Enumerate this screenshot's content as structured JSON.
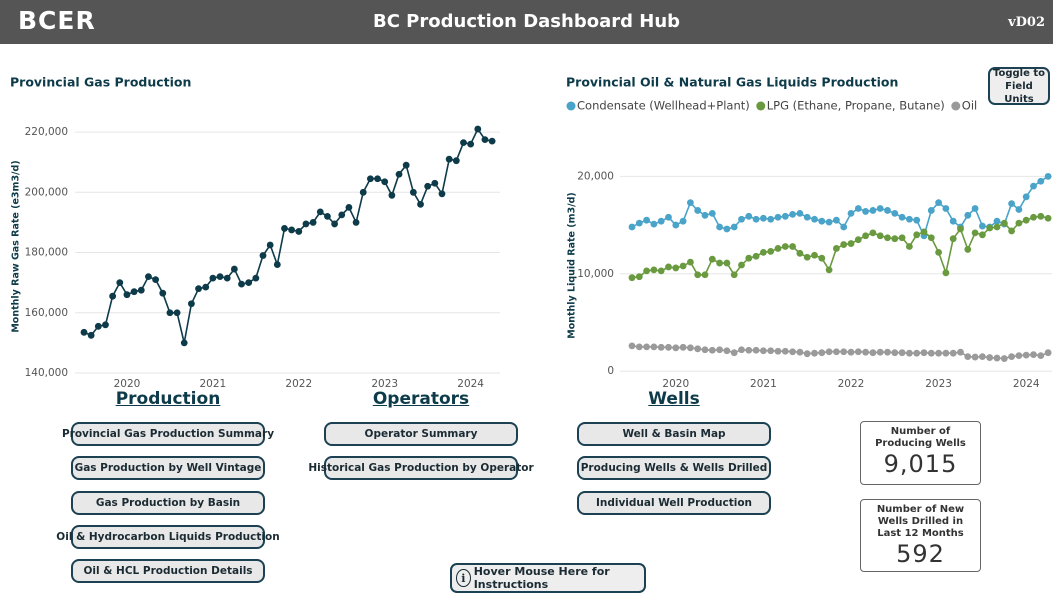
{
  "header": {
    "logo": "BCER",
    "title": "BC Production Dashboard Hub",
    "version": "vD02"
  },
  "chart_data": [
    {
      "type": "line",
      "title": "Provincial Gas Production",
      "y_label": "Monthly Raw Gas Rate (e3m3/d)",
      "categories": [
        null,
        null,
        null,
        null,
        null,
        null,
        "2020",
        null,
        null,
        null,
        null,
        null,
        null,
        null,
        null,
        null,
        null,
        null,
        "2021",
        null,
        null,
        null,
        null,
        null,
        null,
        null,
        null,
        null,
        null,
        null,
        "2022",
        null,
        null,
        null,
        null,
        null,
        null,
        null,
        null,
        null,
        null,
        null,
        "2023",
        null,
        null,
        null,
        null,
        null,
        null,
        null,
        null,
        null,
        null,
        null,
        "2024",
        null,
        null,
        null
      ],
      "color": "#0e3b4a",
      "values": [
        153500,
        152500,
        155500,
        156000,
        165500,
        170000,
        166000,
        167000,
        167500,
        172000,
        171000,
        166500,
        160000,
        160000,
        150000,
        163000,
        168000,
        168500,
        171500,
        172000,
        171500,
        174500,
        169500,
        170000,
        171500,
        179000,
        182500,
        176000,
        188000,
        187500,
        187000,
        189500,
        190000,
        193500,
        192000,
        189500,
        192500,
        195000,
        190000,
        200000,
        204500,
        204500,
        203500,
        199000,
        206000,
        209000,
        200000,
        196000,
        202000,
        203000,
        199500,
        211000,
        210500,
        216500,
        216000,
        221000,
        217500,
        217000
      ],
      "ylim": [
        138000,
        226000
      ],
      "yticks": [
        {
          "value": 140000,
          "label": "140,000"
        },
        {
          "value": 160000,
          "label": "160,000"
        },
        {
          "value": 180000,
          "label": "180,000"
        },
        {
          "value": 200000,
          "label": "200,000"
        },
        {
          "value": 220000,
          "label": "220,000"
        }
      ],
      "grid": true
    },
    {
      "type": "line",
      "title": "Provincial Oil & Natural Gas Liquids Production",
      "y_label": "Monthly Liquid Rate (m3/d)",
      "categories": [
        null,
        null,
        null,
        null,
        null,
        null,
        "2020",
        null,
        null,
        null,
        null,
        null,
        null,
        null,
        null,
        null,
        null,
        null,
        "2021",
        null,
        null,
        null,
        null,
        null,
        null,
        null,
        null,
        null,
        null,
        null,
        "2022",
        null,
        null,
        null,
        null,
        null,
        null,
        null,
        null,
        null,
        null,
        null,
        "2023",
        null,
        null,
        null,
        null,
        null,
        null,
        null,
        null,
        null,
        null,
        null,
        "2024",
        null,
        null,
        null
      ],
      "legend": "top-left",
      "series": [
        {
          "name": "Condensate (Wellhead+Plant)",
          "color": "#4aa3c8",
          "values": [
            14800,
            15200,
            15500,
            15100,
            15400,
            15800,
            15000,
            15400,
            17300,
            16500,
            16000,
            16200,
            14800,
            14600,
            14800,
            15600,
            15900,
            15600,
            15700,
            15600,
            15800,
            15900,
            16100,
            16200,
            15800,
            15600,
            15400,
            15300,
            15500,
            14800,
            16200,
            16700,
            16400,
            16500,
            16700,
            16500,
            16200,
            15800,
            15600,
            15500,
            13900,
            16500,
            17300,
            16700,
            15400,
            14800,
            16000,
            16700,
            14900,
            14800,
            15400,
            15100,
            17200,
            16600,
            17900,
            19000,
            19500,
            20000
          ]
        },
        {
          "name": "LPG (Ethane, Propane, Butane)",
          "color": "#6a9a3f",
          "values": [
            9600,
            9700,
            10300,
            10400,
            10300,
            10700,
            10600,
            10800,
            11200,
            9900,
            9900,
            11500,
            11100,
            11100,
            9900,
            10900,
            11600,
            11800,
            12200,
            12300,
            12600,
            12800,
            12800,
            12100,
            11700,
            11900,
            11600,
            10400,
            12600,
            13000,
            13100,
            13500,
            13900,
            14200,
            13900,
            13700,
            13600,
            13700,
            12800,
            14000,
            14300,
            13700,
            12200,
            10100,
            13600,
            14600,
            12500,
            14200,
            14000,
            14700,
            14800,
            15200,
            14400,
            15200,
            15500,
            15800,
            15900,
            15700
          ]
        },
        {
          "name": "Oil",
          "color": "#9a9a9a",
          "values": [
            2600,
            2500,
            2500,
            2500,
            2450,
            2450,
            2400,
            2450,
            2400,
            2300,
            2200,
            2150,
            2200,
            2100,
            1900,
            2200,
            2150,
            2150,
            2100,
            2100,
            2050,
            2050,
            2000,
            1950,
            1800,
            1850,
            1900,
            2000,
            2000,
            2000,
            1950,
            2000,
            1950,
            1900,
            1950,
            1950,
            1900,
            1900,
            1850,
            1850,
            1900,
            1850,
            1850,
            1850,
            1850,
            1950,
            1500,
            1450,
            1500,
            1400,
            1350,
            1300,
            1500,
            1600,
            1650,
            1700,
            1600,
            1900
          ]
        }
      ],
      "ylim": [
        -800,
        22500
      ],
      "yticks": [
        0,
        {
          "value": 10000,
          "label": "10,000"
        },
        {
          "value": 20000,
          "label": "20,000"
        }
      ],
      "grid": true
    }
  ],
  "toggle_button": "Toggle to Field Units",
  "nav": [
    {
      "heading": "Production",
      "buttons": [
        "Provincial Gas Production Summary",
        "Gas Production by Well Vintage",
        "Gas Production by Basin",
        "Oil & Hydrocarbon Liquids Production",
        "Oil & HCL Production Details"
      ]
    },
    {
      "heading": "Operators",
      "buttons": [
        "Operator Summary",
        "Historical Gas Production by Operator"
      ]
    },
    {
      "heading": "Wells",
      "buttons": [
        "Well & Basin Map",
        "Producing Wells & Wells Drilled",
        "Individual Well Production"
      ]
    }
  ],
  "kpis": [
    {
      "label": "Number of Producing Wells",
      "value": "9,015"
    },
    {
      "label": "Number of New Wells Drilled in Last 12 Months",
      "value": "592"
    }
  ],
  "help": "Hover Mouse Here for Instructions"
}
